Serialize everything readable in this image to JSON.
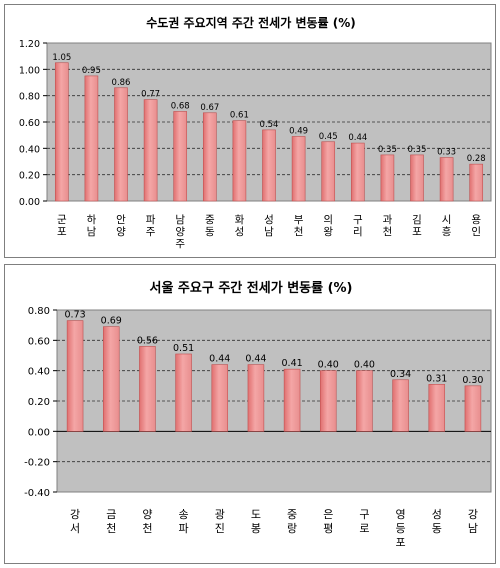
{
  "chart_data": [
    {
      "type": "bar",
      "title": "수도권 주요지역 주간 전세가 변동률 (%)",
      "xlabel": "",
      "ylabel": "",
      "categories": [
        "군포",
        "하남",
        "안양",
        "파주",
        "남양주",
        "중동",
        "화성",
        "성남",
        "부천",
        "의왕",
        "구리",
        "과천",
        "김포",
        "시흥",
        "용인"
      ],
      "values": [
        1.05,
        0.95,
        0.86,
        0.77,
        0.68,
        0.67,
        0.61,
        0.54,
        0.49,
        0.45,
        0.44,
        0.35,
        0.35,
        0.33,
        0.28
      ],
      "value_labels": [
        "1.05",
        "0.95",
        "0.86",
        "0.77",
        "0.68",
        "0.67",
        "0.61",
        "0.54",
        "0.49",
        "0.45",
        "0.44",
        "0.35",
        "0.35",
        "0.33",
        "0.28"
      ],
      "ylim": [
        0,
        1.2
      ],
      "yticks": [
        "0.00",
        "0.20",
        "0.40",
        "0.60",
        "0.80",
        "1.00",
        "1.20"
      ],
      "grid": true,
      "legend": "none",
      "bar_color": "#f4a6a6",
      "bar_edge_color": "#c05050",
      "plot_bg": "#c0c0c0"
    },
    {
      "type": "bar",
      "title": "서울 주요구 주간 전세가 변동률 (%)",
      "xlabel": "",
      "ylabel": "",
      "categories": [
        "강서",
        "금천",
        "양천",
        "송파",
        "광진",
        "도봉",
        "중랑",
        "은평",
        "구로",
        "영등포",
        "성동",
        "강남"
      ],
      "values": [
        0.73,
        0.69,
        0.56,
        0.51,
        0.44,
        0.44,
        0.41,
        0.4,
        0.4,
        0.34,
        0.31,
        0.3
      ],
      "value_labels": [
        "0.73",
        "0.69",
        "0.56",
        "0.51",
        "0.44",
        "0.44",
        "0.41",
        "0.40",
        "0.40",
        "0.34",
        "0.31",
        "0.30"
      ],
      "ylim": [
        -0.4,
        0.8
      ],
      "yticks": [
        "-0.40",
        "-0.20",
        "0.00",
        "0.20",
        "0.40",
        "0.60",
        "0.80"
      ],
      "grid": true,
      "legend": "none",
      "bar_color": "#f4a6a6",
      "bar_edge_color": "#c05050",
      "plot_bg": "#c0c0c0"
    }
  ]
}
